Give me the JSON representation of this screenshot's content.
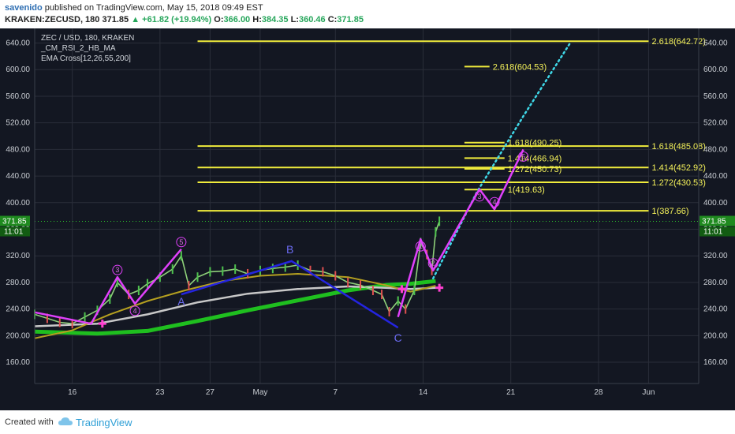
{
  "header": {
    "author": "savenido",
    "published": "published on TradingView.com, May 15, 2018 09:49 EST",
    "symbol": "KRAKEN:ZECUSD, 180",
    "last": "371.85",
    "change": "+61.82 (+19.94%)",
    "o_label": "O:",
    "o": "366.00",
    "h_label": "H:",
    "h": "384.35",
    "l_label": "L:",
    "l": "360.46",
    "c_label": "C:",
    "c": "371.85"
  },
  "legend": {
    "line1": "ZEC / USD, 180, KRAKEN",
    "line2": "_CM_RSI_2_HB_MA",
    "line3": "EMA Cross[12,26,55,200]"
  },
  "footer": {
    "created": "Created with",
    "brand": "TradingView"
  },
  "colors": {
    "background": "#131722",
    "grid": "#2a2e39",
    "fib": "#f0ec3c",
    "wave": "#e040fb",
    "abc": "#2424e0",
    "projection": "#3fd8e8",
    "price_tag": "#1f8a1f",
    "ema_green": "#1fbf1f",
    "ema_white": "#c8c8c8",
    "ema_olive": "#b5a020"
  },
  "chart_data": {
    "type": "line",
    "title": "ZEC / USD, 180, KRAKEN",
    "ylim": [
      128,
      662
    ],
    "y_ticks": [
      160,
      200,
      240,
      280,
      320,
      360,
      400,
      440,
      480,
      520,
      560,
      600,
      640
    ],
    "y_tick_labels": [
      "160.00",
      "200.00",
      "240.00",
      "280.00",
      "320.00",
      "360.00",
      "400.00",
      "440.00",
      "480.00",
      "520.00",
      "560.00",
      "600.00",
      "640.00"
    ],
    "x_ticks": [
      "16",
      "23",
      "27",
      "May",
      "7",
      "14",
      "21",
      "28",
      "Jun"
    ],
    "x_tick_days": [
      16,
      23,
      27,
      31,
      37,
      44,
      51,
      58,
      62
    ],
    "xlim": [
      13,
      66
    ],
    "last_price": 371.85,
    "last_price_label": "371.85",
    "countdown": "11:01",
    "price_series": {
      "name": "ZEC/USD",
      "x": [
        13,
        14,
        15,
        16,
        17,
        18,
        19,
        19.6,
        20.5,
        21.3,
        22,
        23,
        24,
        24.7,
        25.3,
        26,
        27,
        28,
        29,
        30,
        31,
        32,
        33,
        34,
        35,
        36,
        37,
        38,
        39,
        40,
        40.7,
        41.3,
        42,
        42.6,
        43.3,
        43.8,
        44.3,
        44.7,
        45.0,
        45.3
      ],
      "y": [
        232,
        226,
        220,
        218,
        228,
        238,
        255,
        280,
        262,
        268,
        278,
        288,
        300,
        320,
        275,
        288,
        296,
        297,
        300,
        293,
        298,
        301,
        303,
        306,
        298,
        296,
        290,
        280,
        276,
        268,
        262,
        236,
        252,
        240,
        268,
        340,
        322,
        298,
        356,
        372
      ]
    },
    "ema_series": [
      {
        "color": "#1fbf1f",
        "x": [
          13,
          18,
          22,
          26,
          30,
          34,
          38,
          41,
          43,
          45
        ],
        "y": [
          206,
          203,
          207,
          222,
          238,
          253,
          268,
          276,
          278,
          282
        ]
      },
      {
        "color": "#c8c8c8",
        "x": [
          13,
          18,
          22,
          26,
          30,
          34,
          38,
          41,
          43,
          45
        ],
        "y": [
          214,
          218,
          232,
          250,
          263,
          270,
          274,
          272,
          270,
          272
        ]
      },
      {
        "color": "#b5a020",
        "x": [
          13,
          16,
          19,
          22,
          25,
          28,
          31,
          34,
          38,
          41,
          43,
          45
        ],
        "y": [
          196,
          208,
          232,
          252,
          268,
          282,
          290,
          293,
          288,
          276,
          266,
          275
        ]
      }
    ],
    "wave_impulse_1": {
      "x": [
        13,
        17.5,
        19.6,
        21,
        24.7
      ],
      "y": [
        235,
        218,
        288,
        248,
        330
      ],
      "labels": [
        "3",
        "4",
        "5"
      ]
    },
    "abc": {
      "x": [
        24.7,
        33.5,
        42
      ],
      "y": [
        262,
        312,
        212
      ],
      "labels": [
        "A",
        "B",
        "C"
      ]
    },
    "wave_impulse_2": {
      "x": [
        42,
        43.8,
        44.8,
        48.5,
        49.7,
        52
      ],
      "y": [
        228,
        345,
        298,
        420,
        390,
        480
      ],
      "labels": [
        "1",
        "2",
        "3",
        "4",
        "5"
      ]
    },
    "projection": {
      "x": [
        44.8,
        48.3,
        52,
        55.8
      ],
      "y": [
        286,
        416,
        530,
        642
      ]
    },
    "fib_levels": [
      {
        "label": "2.618(642.72)",
        "value": 642.72,
        "x0": 26,
        "x1": 62
      },
      {
        "label": "2.618(604.53)",
        "value": 604.53,
        "x0": 47.3,
        "x1": 49.3
      },
      {
        "label": "1.618(490.25)",
        "value": 490.25,
        "x0": 47.3,
        "x1": 50.5
      },
      {
        "label": "1.618(485.08)",
        "value": 485.08,
        "x0": 26,
        "x1": 62
      },
      {
        "label": "1.414(466.94)",
        "value": 466.94,
        "x0": 47.3,
        "x1": 50.5
      },
      {
        "label": "1.414(452.92)",
        "value": 452.92,
        "x0": 26,
        "x1": 62
      },
      {
        "label": "1.272(450.73)",
        "value": 450.73,
        "x0": 47.3,
        "x1": 50.5
      },
      {
        "label": "1.272(430.53)",
        "value": 430.53,
        "x0": 26,
        "x1": 62
      },
      {
        "label": "1(419.63)",
        "value": 419.63,
        "x0": 47.3,
        "x1": 50.5
      },
      {
        "label": "1(387.66)",
        "value": 387.66,
        "x0": 26,
        "x1": 62
      }
    ]
  }
}
